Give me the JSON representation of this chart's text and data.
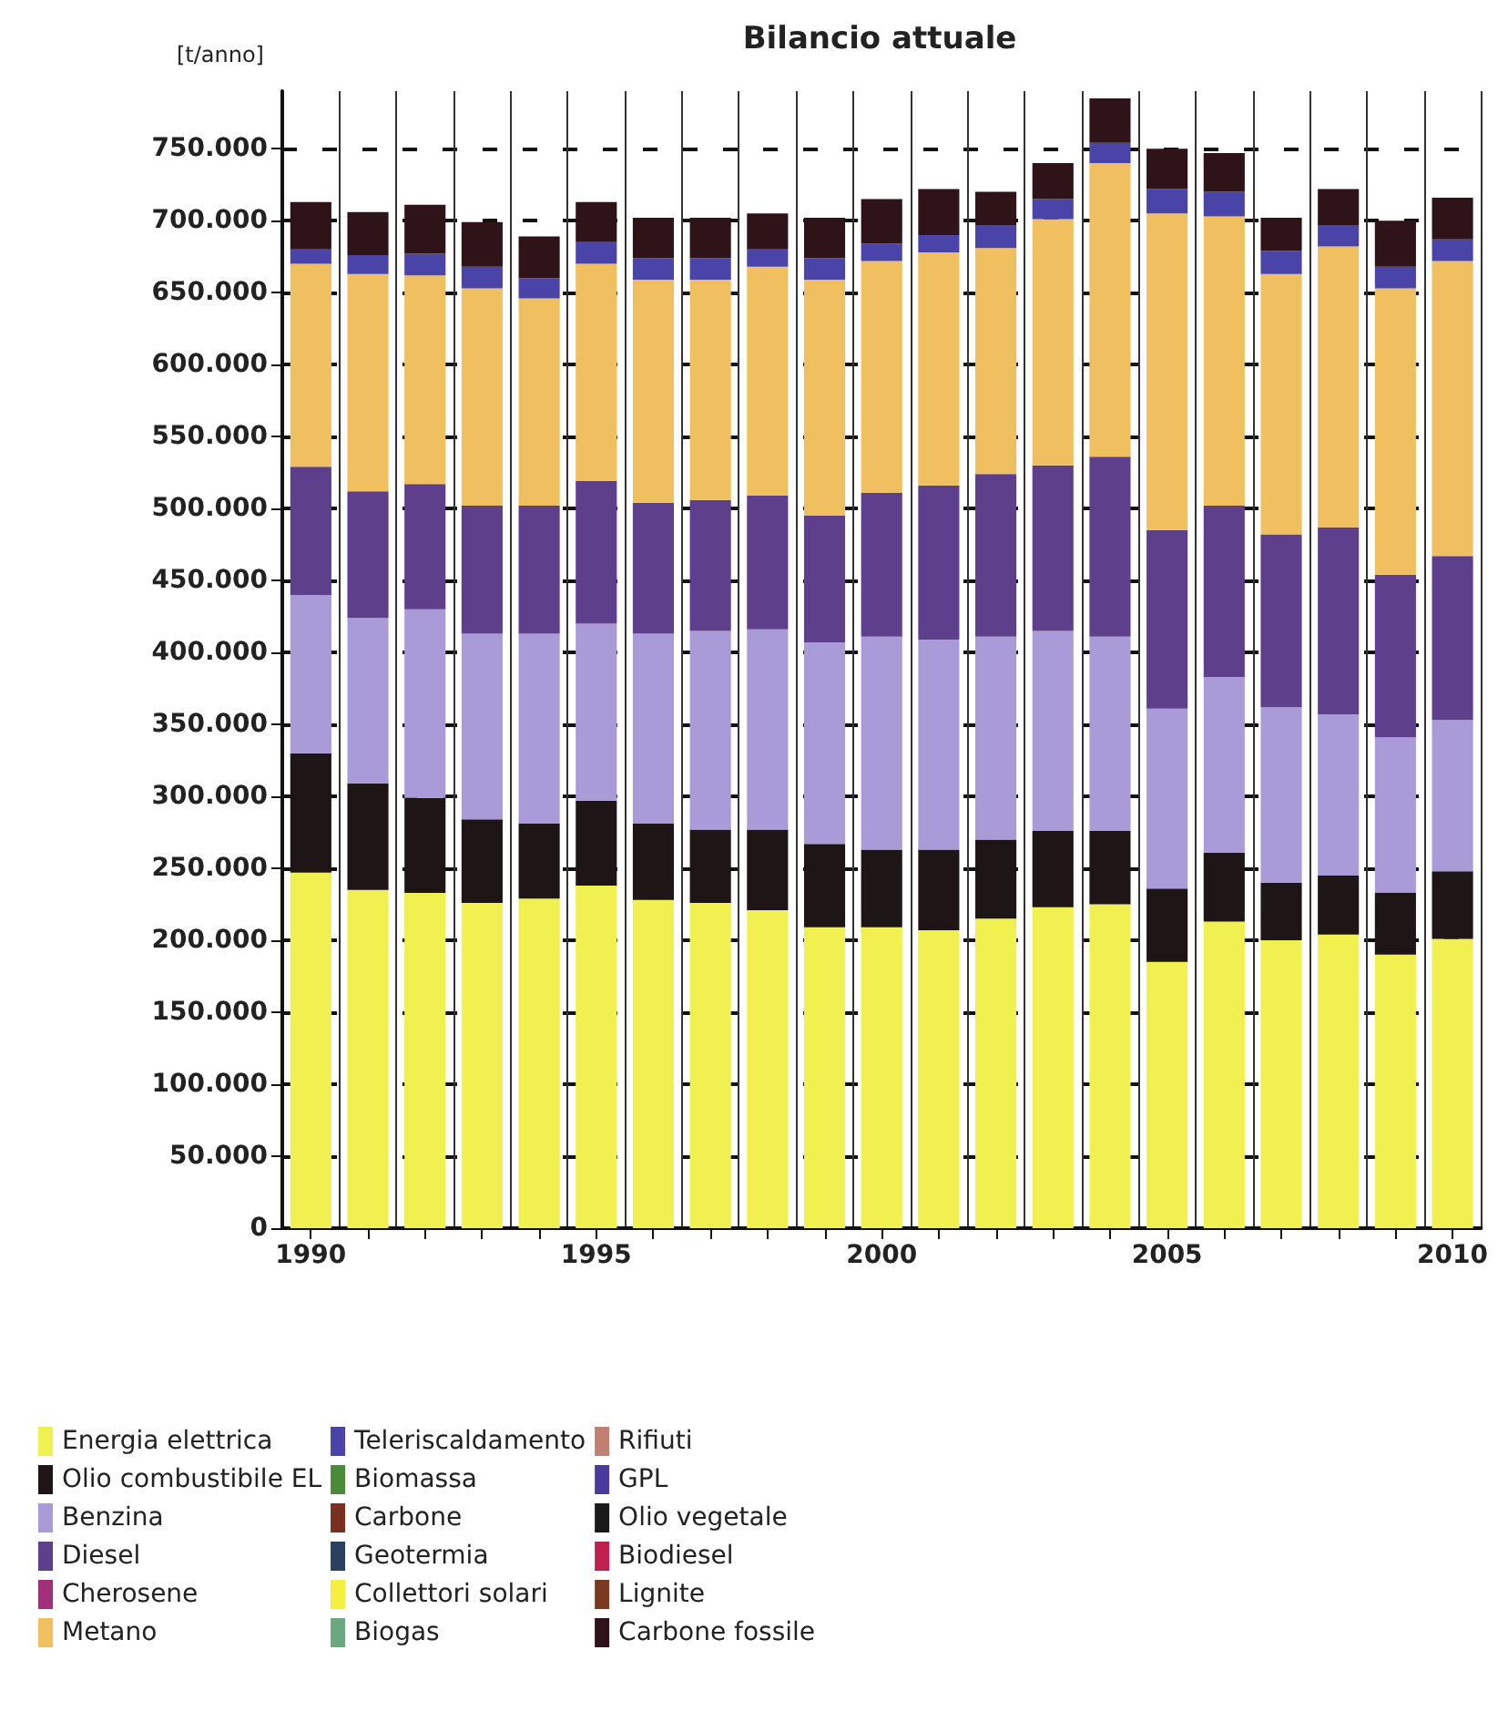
{
  "chart_data": {
    "type": "bar",
    "title": "Bilancio attuale",
    "ylabel": "[t/anno]",
    "stacked": true,
    "grid": true,
    "legend": "bottom",
    "categories": [
      "1990",
      null,
      null,
      null,
      null,
      "1995",
      null,
      null,
      null,
      null,
      "2000",
      null,
      null,
      null,
      null,
      "2005",
      null,
      null,
      null,
      null,
      "2010"
    ],
    "ylim": [
      0,
      790000
    ],
    "yticks": [
      0,
      {
        "value": 50000,
        "label": "50.000"
      },
      {
        "value": 100000,
        "label": "100.000"
      },
      {
        "value": 150000,
        "label": "150.000"
      },
      {
        "value": 200000,
        "label": "200.000"
      },
      {
        "value": 250000,
        "label": "250.000"
      },
      {
        "value": 300000,
        "label": "300.000"
      },
      {
        "value": 350000,
        "label": "350.000"
      },
      {
        "value": 400000,
        "label": "400.000"
      },
      {
        "value": 450000,
        "label": "450.000"
      },
      {
        "value": 500000,
        "label": "500.000"
      },
      {
        "value": 550000,
        "label": "550.000"
      },
      {
        "value": 600000,
        "label": "600.000"
      },
      {
        "value": 650000,
        "label": "650.000"
      },
      {
        "value": 700000,
        "label": "700.000"
      },
      {
        "value": 750000,
        "label": "750.000"
      }
    ],
    "series": [
      {
        "name": "Energia elettrica",
        "color": "#f0f050",
        "values": [
          247000,
          235000,
          233000,
          226000,
          229000,
          238000,
          228000,
          226000,
          221000,
          209000,
          209000,
          207000,
          215000,
          223000,
          225000,
          185000,
          213000,
          200000,
          204000,
          190000,
          201000
        ]
      },
      {
        "name": "Olio combustibile EL",
        "color": "#1e1616",
        "values": [
          83000,
          74000,
          66000,
          58000,
          52000,
          59000,
          53000,
          51000,
          56000,
          58000,
          54000,
          56000,
          55000,
          53000,
          51000,
          51000,
          48000,
          40000,
          41000,
          43000,
          47000
        ]
      },
      {
        "name": "Benzina",
        "color": "#a99bd8",
        "values": [
          110000,
          115000,
          131000,
          129000,
          132000,
          123000,
          132000,
          138000,
          139000,
          140000,
          148000,
          146000,
          141000,
          139000,
          135000,
          125000,
          122000,
          122000,
          112000,
          108000,
          105000
        ]
      },
      {
        "name": "Diesel",
        "color": "#5e3f8c",
        "values": [
          89000,
          88000,
          87000,
          89000,
          89000,
          99000,
          91000,
          91000,
          93000,
          88000,
          100000,
          107000,
          113000,
          115000,
          125000,
          124000,
          119000,
          120000,
          130000,
          113000,
          114000
        ]
      },
      {
        "name": "Cherosene",
        "color": "#a0307a",
        "values": [
          0,
          0,
          0,
          0,
          0,
          0,
          0,
          0,
          0,
          0,
          0,
          0,
          0,
          0,
          0,
          0,
          0,
          0,
          0,
          0,
          0
        ]
      },
      {
        "name": "Metano",
        "color": "#f0c060",
        "values": [
          141000,
          151000,
          145000,
          151000,
          144000,
          151000,
          155000,
          153000,
          159000,
          164000,
          161000,
          162000,
          157000,
          171000,
          204000,
          220000,
          201000,
          181000,
          195000,
          199000,
          205000
        ]
      },
      {
        "name": "Teleriscaldamento",
        "color": "#4b44a8",
        "values": [
          10000,
          13000,
          15000,
          15000,
          14000,
          15000,
          15000,
          15000,
          12000,
          15000,
          12000,
          12000,
          16000,
          14000,
          14000,
          17000,
          17000,
          16000,
          15000,
          15000,
          15000
        ]
      },
      {
        "name": "Biomassa",
        "color": "#4a8a3a",
        "values": [
          0,
          0,
          0,
          0,
          0,
          0,
          0,
          0,
          0,
          0,
          0,
          0,
          0,
          0,
          0,
          0,
          0,
          0,
          0,
          0,
          0
        ]
      },
      {
        "name": "Carbone",
        "color": "#7a3020",
        "values": [
          0,
          0,
          0,
          0,
          0,
          0,
          0,
          0,
          0,
          0,
          0,
          0,
          0,
          0,
          0,
          0,
          0,
          0,
          0,
          0,
          0
        ]
      },
      {
        "name": "Geotermia",
        "color": "#2a4060",
        "values": [
          0,
          0,
          0,
          0,
          0,
          0,
          0,
          0,
          0,
          0,
          0,
          0,
          0,
          0,
          0,
          0,
          0,
          0,
          0,
          0,
          0
        ]
      },
      {
        "name": "Collettori solari",
        "color": "#f4f040",
        "values": [
          0,
          0,
          0,
          0,
          0,
          0,
          0,
          0,
          0,
          0,
          0,
          0,
          0,
          0,
          0,
          0,
          0,
          0,
          0,
          0,
          0
        ]
      },
      {
        "name": "Biogas",
        "color": "#6aa880",
        "values": [
          0,
          0,
          0,
          0,
          0,
          0,
          0,
          0,
          0,
          0,
          0,
          0,
          0,
          0,
          0,
          0,
          0,
          0,
          0,
          0,
          0
        ]
      },
      {
        "name": "Rifiuti",
        "color": "#c08070",
        "values": [
          0,
          0,
          0,
          0,
          0,
          0,
          0,
          0,
          0,
          0,
          0,
          0,
          0,
          0,
          0,
          0,
          0,
          0,
          0,
          0,
          0
        ]
      },
      {
        "name": "GPL",
        "color": "#4a3a9a",
        "values": [
          0,
          0,
          0,
          0,
          0,
          0,
          0,
          0,
          0,
          0,
          0,
          0,
          0,
          0,
          0,
          0,
          0,
          0,
          0,
          0,
          0
        ]
      },
      {
        "name": "Olio vegetale",
        "color": "#1a1a1a",
        "values": [
          0,
          0,
          0,
          0,
          0,
          0,
          0,
          0,
          0,
          0,
          0,
          0,
          0,
          0,
          0,
          0,
          0,
          0,
          0,
          0,
          0
        ]
      },
      {
        "name": "Biodiesel",
        "color": "#c02050",
        "values": [
          0,
          0,
          0,
          0,
          0,
          0,
          0,
          0,
          0,
          0,
          0,
          0,
          0,
          0,
          0,
          0,
          0,
          0,
          0,
          0,
          0
        ]
      },
      {
        "name": "Lignite",
        "color": "#7a3a20",
        "values": [
          0,
          0,
          0,
          0,
          0,
          0,
          0,
          0,
          0,
          0,
          0,
          0,
          0,
          0,
          0,
          0,
          0,
          0,
          0,
          0,
          0
        ]
      },
      {
        "name": "Carbone fossile",
        "color": "#2e1418",
        "values": [
          33000,
          30000,
          34000,
          31000,
          29000,
          28000,
          28000,
          28000,
          25000,
          28000,
          31000,
          32000,
          23000,
          25000,
          31000,
          28000,
          27000,
          23000,
          25000,
          32000,
          29000
        ]
      }
    ]
  }
}
